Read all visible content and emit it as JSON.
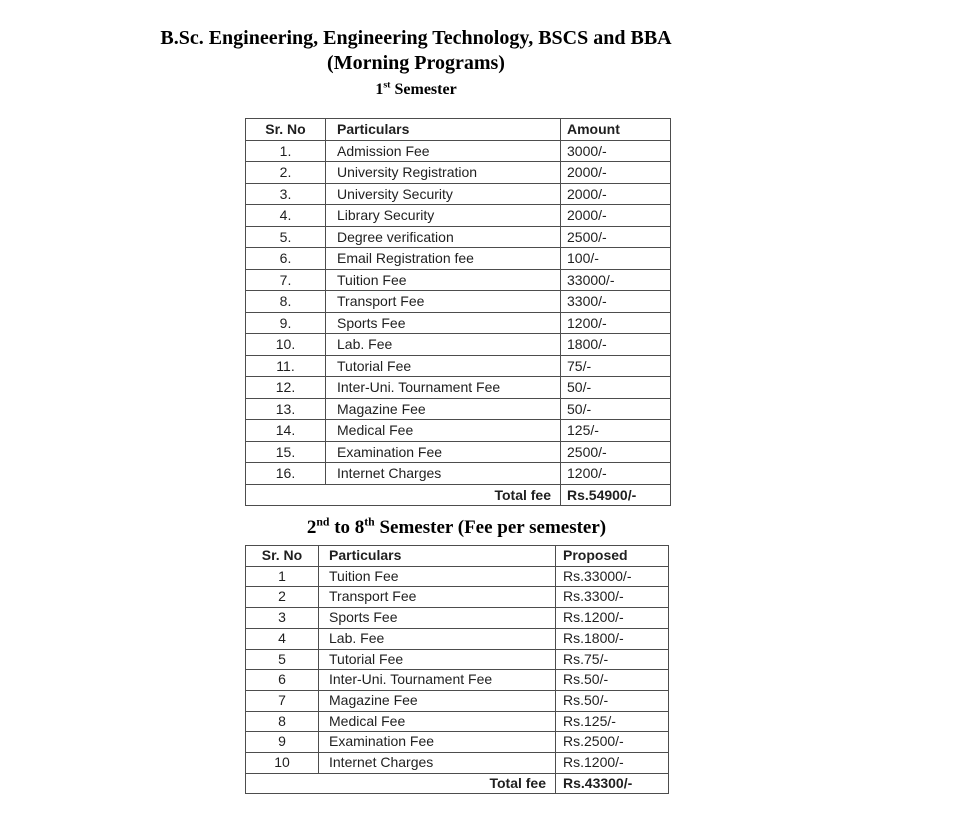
{
  "colors": {
    "text": "#1f1f1f",
    "heading": "#000000",
    "border": "#4d4d4d",
    "background": "#ffffff"
  },
  "document": {
    "title_line1": "B.Sc. Engineering, Engineering Technology, BSCS and BBA",
    "title_line2": "(Morning Programs)",
    "semester1_heading": {
      "base": "1",
      "sup": "st",
      "rest": " Semester"
    },
    "semester2_heading": {
      "p1": "2",
      "s1": "nd",
      "p2": " to 8",
      "s2": "th",
      "p3": " Semester (Fee per semester)"
    }
  },
  "table1": {
    "columns": [
      "Sr. No",
      "Particulars",
      "Amount"
    ],
    "rows": [
      {
        "no": "1.",
        "particulars": "Admission Fee",
        "amount": "3000/-"
      },
      {
        "no": "2.",
        "particulars": "University Registration",
        "amount": "2000/-"
      },
      {
        "no": "3.",
        "particulars": "University Security",
        "amount": "2000/-"
      },
      {
        "no": "4.",
        "particulars": "Library Security",
        "amount": "2000/-"
      },
      {
        "no": "5.",
        "particulars": "Degree verification",
        "amount": "2500/-"
      },
      {
        "no": "6.",
        "particulars": "Email Registration fee",
        "amount": "100/-"
      },
      {
        "no": "7.",
        "particulars": "Tuition Fee",
        "amount": "33000/-"
      },
      {
        "no": "8.",
        "particulars": "Transport Fee",
        "amount": "3300/-"
      },
      {
        "no": "9.",
        "particulars": "Sports Fee",
        "amount": "1200/-"
      },
      {
        "no": "10.",
        "particulars": "Lab. Fee",
        "amount": "1800/-"
      },
      {
        "no": "11.",
        "particulars": "Tutorial Fee",
        "amount": "75/-"
      },
      {
        "no": "12.",
        "particulars": "Inter-Uni. Tournament Fee",
        "amount": "50/-"
      },
      {
        "no": "13.",
        "particulars": "Magazine Fee",
        "amount": "50/-"
      },
      {
        "no": "14.",
        "particulars": "Medical Fee",
        "amount": "125/-"
      },
      {
        "no": "15.",
        "particulars": "Examination Fee",
        "amount": "2500/-"
      },
      {
        "no": "16.",
        "particulars": "Internet Charges",
        "amount": "1200/-"
      }
    ],
    "total_label": "Total fee",
    "total_value": "Rs.54900/-"
  },
  "table2": {
    "columns": [
      "Sr. No",
      "Particulars",
      "Proposed"
    ],
    "rows": [
      {
        "no": "1",
        "particulars": "Tuition Fee",
        "amount": "Rs.33000/-"
      },
      {
        "no": "2",
        "particulars": "Transport Fee",
        "amount": "Rs.3300/-"
      },
      {
        "no": "3",
        "particulars": "Sports Fee",
        "amount": "Rs.1200/-"
      },
      {
        "no": "4",
        "particulars": "Lab. Fee",
        "amount": "Rs.1800/-"
      },
      {
        "no": "5",
        "particulars": "Tutorial Fee",
        "amount": "Rs.75/-"
      },
      {
        "no": "6",
        "particulars": "Inter-Uni. Tournament Fee",
        "amount": "Rs.50/-"
      },
      {
        "no": "7",
        "particulars": "Magazine Fee",
        "amount": "Rs.50/-"
      },
      {
        "no": "8",
        "particulars": "Medical Fee",
        "amount": "Rs.125/-"
      },
      {
        "no": "9",
        "particulars": "Examination Fee",
        "amount": "Rs.2500/-"
      },
      {
        "no": "10",
        "particulars": "Internet Charges",
        "amount": "Rs.1200/-"
      }
    ],
    "total_label": "Total fee",
    "total_value": "Rs.43300/-"
  }
}
